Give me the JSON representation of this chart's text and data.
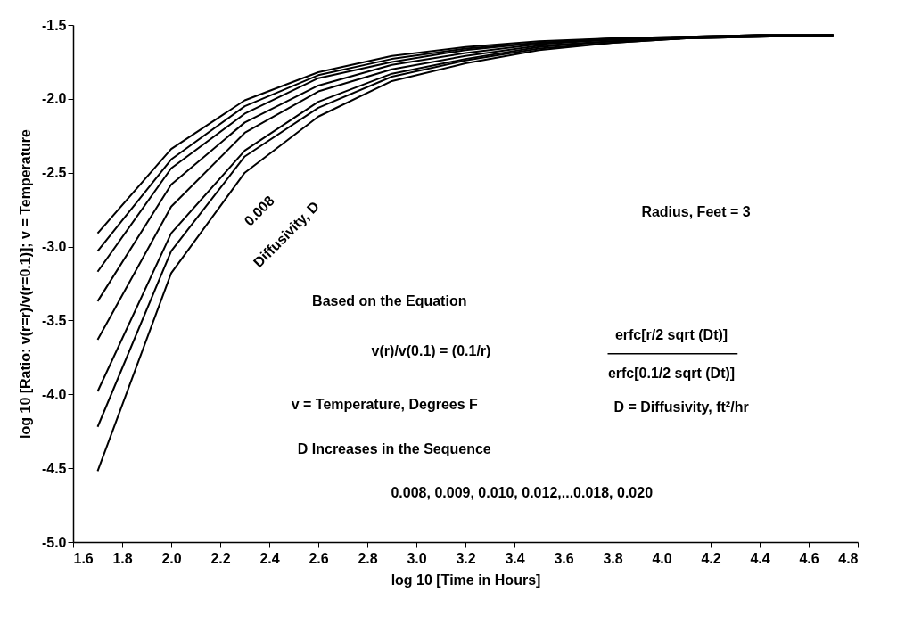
{
  "chart_data": {
    "type": "line",
    "xlabel": "log 10 [Time in Hours]",
    "ylabel": "log 10 [Ratio: v(r=r)/v(r=0.1)]; v = Temperature",
    "x": [
      1.7,
      2.0,
      2.3,
      2.6,
      2.9,
      3.2,
      3.5,
      3.8,
      4.1,
      4.4,
      4.7
    ],
    "series": [
      {
        "color": "#000000",
        "values": [
          -2.91,
          -2.34,
          -2.01,
          -1.82,
          -1.71,
          -1.65,
          -1.61,
          -1.59,
          -1.58,
          -1.57,
          -1.57
        ]
      },
      {
        "color": "#000000",
        "values": [
          -3.03,
          -2.41,
          -2.05,
          -1.84,
          -1.73,
          -1.66,
          -1.62,
          -1.59,
          -1.58,
          -1.57,
          -1.57
        ]
      },
      {
        "color": "#000000",
        "values": [
          -3.17,
          -2.47,
          -2.1,
          -1.86,
          -1.75,
          -1.67,
          -1.62,
          -1.6,
          -1.58,
          -1.57,
          -1.57
        ]
      },
      {
        "color": "#000000",
        "values": [
          -3.37,
          -2.58,
          -2.16,
          -1.91,
          -1.77,
          -1.69,
          -1.63,
          -1.6,
          -1.58,
          -1.57,
          -1.57
        ]
      },
      {
        "color": "#000000",
        "values": [
          -3.63,
          -2.73,
          -2.23,
          -1.95,
          -1.8,
          -1.71,
          -1.64,
          -1.61,
          -1.59,
          -1.57,
          -1.57
        ]
      },
      {
        "color": "#000000",
        "values": [
          -3.98,
          -2.91,
          -2.35,
          -2.02,
          -1.83,
          -1.73,
          -1.65,
          -1.61,
          -1.59,
          -1.58,
          -1.57
        ]
      },
      {
        "color": "#000000",
        "values": [
          -4.22,
          -3.03,
          -2.39,
          -2.06,
          -1.85,
          -1.74,
          -1.66,
          -1.62,
          -1.59,
          -1.58,
          -1.57
        ]
      },
      {
        "color": "#000000",
        "values": [
          -4.52,
          -3.18,
          -2.5,
          -2.12,
          -1.88,
          -1.76,
          -1.67,
          -1.62,
          -1.59,
          -1.58,
          -1.57
        ]
      }
    ],
    "xlim": [
      1.6,
      4.8
    ],
    "xticks": [
      1.6,
      1.8,
      {
        "value": 2,
        "label": "2.0"
      },
      2.2,
      2.4,
      2.6,
      2.8,
      {
        "value": 3,
        "label": "3.0"
      },
      3.2,
      3.4,
      3.6,
      3.8,
      {
        "value": 4,
        "label": "4.0"
      },
      4.2,
      4.4,
      4.6,
      4.8
    ],
    "ylim": [
      -5,
      -1.5
    ],
    "yticks": [
      {
        "value": -5,
        "label": "-5.0"
      },
      -4.5,
      {
        "value": -4,
        "label": "-4.0"
      },
      -3.5,
      {
        "value": -3,
        "label": "-3.0"
      },
      -2.5,
      {
        "value": -2,
        "label": "-2.0"
      },
      -1.5
    ],
    "grid": false,
    "marker": "none",
    "line_style": "solid",
    "annotations": [
      "0.008",
      "Diffusivity, D",
      "Radius, Feet = 3",
      "Based on the Equation",
      "v(r)/v(0.1) = (0.1/r)",
      "erfc[r/2 sqrt (Dt)]",
      "erfc[0.1/2 sqrt (Dt)]",
      "v = Temperature, Degrees F",
      "D = Diffusivity, ft²/hr",
      "D Increases in the Sequence",
      "0.008, 0.009, 0.010, 0.012,...0.018, 0.020"
    ]
  }
}
